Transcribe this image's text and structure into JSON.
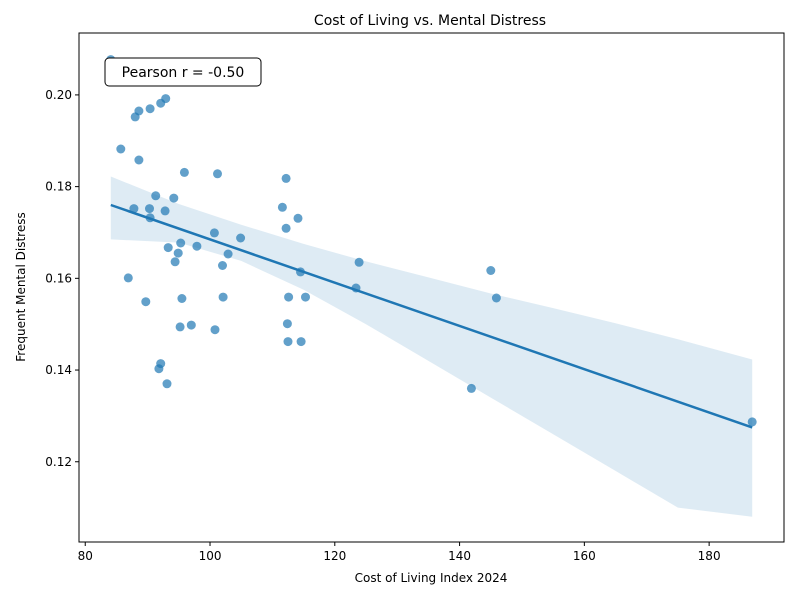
{
  "chart_data": {
    "type": "scatter",
    "title": "Cost of Living vs. Mental Distress",
    "xlabel": "Cost of Living Index 2024",
    "ylabel": "Frequent Mental Distress",
    "xlim": [
      79,
      192
    ],
    "ylim": [
      0.1025,
      0.2135
    ],
    "x_ticks": [
      80,
      100,
      120,
      140,
      160,
      180
    ],
    "y_ticks": [
      0.12,
      0.14,
      0.16,
      0.18,
      0.2
    ],
    "x_tick_labels": [
      "80",
      "100",
      "120",
      "140",
      "160",
      "180"
    ],
    "y_tick_labels": [
      "0.12",
      "0.14",
      "0.16",
      "0.18",
      "0.20"
    ],
    "grid": false,
    "annotation": "Pearson r = -0.50",
    "point_color": "#1f77b4",
    "line_color": "#1f77b4",
    "band_color": "#1f77b4",
    "regression": {
      "x": [
        84.1,
        186.9
      ],
      "y": [
        0.176,
        0.1275
      ]
    },
    "confidence_band": {
      "x": [
        84.1,
        95,
        105,
        115,
        125,
        135,
        145,
        155,
        165,
        175,
        186.9
      ],
      "upper": [
        0.1822,
        0.1762,
        0.1717,
        0.1675,
        0.1637,
        0.1602,
        0.1567,
        0.1535,
        0.1502,
        0.1467,
        0.1423
      ],
      "lower": [
        0.1685,
        0.1678,
        0.1638,
        0.1575,
        0.15,
        0.142,
        0.134,
        0.126,
        0.118,
        0.11,
        0.108
      ]
    },
    "points": [
      [
        84.1,
        0.2077
      ],
      [
        88.6,
        0.1965
      ],
      [
        92.9,
        0.1992
      ],
      [
        92.1,
        0.1982
      ],
      [
        90.4,
        0.197
      ],
      [
        88.0,
        0.1952
      ],
      [
        85.7,
        0.1882
      ],
      [
        88.6,
        0.1858
      ],
      [
        95.9,
        0.1831
      ],
      [
        101.2,
        0.1828
      ],
      [
        112.2,
        0.1818
      ],
      [
        91.3,
        0.178
      ],
      [
        94.2,
        0.1775
      ],
      [
        87.8,
        0.1752
      ],
      [
        90.3,
        0.1752
      ],
      [
        92.8,
        0.1747
      ],
      [
        90.4,
        0.1732
      ],
      [
        111.6,
        0.1755
      ],
      [
        114.1,
        0.1731
      ],
      [
        112.2,
        0.1709
      ],
      [
        100.7,
        0.1699
      ],
      [
        104.9,
        0.1688
      ],
      [
        95.3,
        0.1677
      ],
      [
        93.3,
        0.1667
      ],
      [
        97.9,
        0.167
      ],
      [
        94.9,
        0.1655
      ],
      [
        102.9,
        0.1653
      ],
      [
        94.4,
        0.1636
      ],
      [
        102.0,
        0.1628
      ],
      [
        114.5,
        0.1614
      ],
      [
        123.9,
        0.1635
      ],
      [
        86.9,
        0.1601
      ],
      [
        123.4,
        0.1579
      ],
      [
        145.0,
        0.1617
      ],
      [
        145.9,
        0.1557
      ],
      [
        95.5,
        0.1556
      ],
      [
        102.1,
        0.1559
      ],
      [
        112.6,
        0.1559
      ],
      [
        115.3,
        0.1559
      ],
      [
        89.7,
        0.1549
      ],
      [
        95.2,
        0.1494
      ],
      [
        97.0,
        0.1498
      ],
      [
        100.8,
        0.1488
      ],
      [
        112.4,
        0.1501
      ],
      [
        112.5,
        0.1462
      ],
      [
        114.6,
        0.1462
      ],
      [
        92.1,
        0.1414
      ],
      [
        91.8,
        0.1403
      ],
      [
        93.1,
        0.137
      ],
      [
        141.9,
        0.136
      ],
      [
        186.9,
        0.1287
      ]
    ]
  }
}
